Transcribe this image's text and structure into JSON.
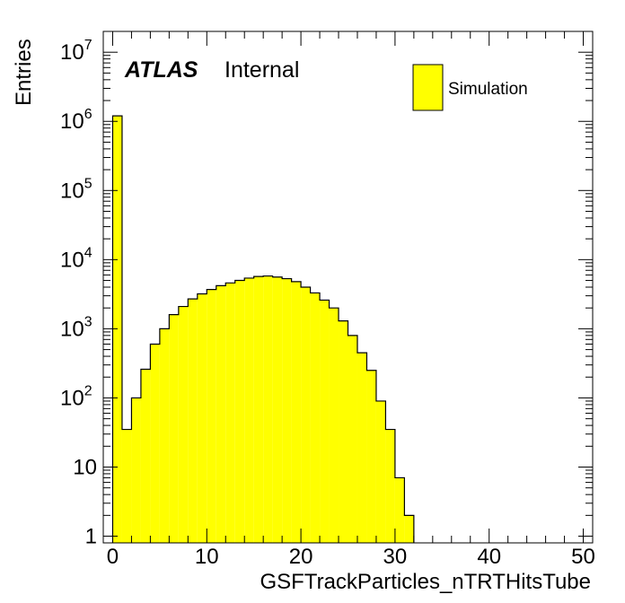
{
  "chart_data": {
    "type": "bar",
    "xlabel": "GSFTrackParticles_nTRTHitsTube",
    "ylabel": "Entries",
    "xlim": [
      -1,
      51
    ],
    "ylim": [
      0.8,
      20000000
    ],
    "yscale": "log",
    "bin_width": 1,
    "x_ticks": [
      0,
      10,
      20,
      30,
      40,
      50
    ],
    "y_ticks": [
      {
        "value": 1,
        "base": "1",
        "exp": ""
      },
      {
        "value": 10,
        "base": "10",
        "exp": ""
      },
      {
        "value": 100,
        "base": "10",
        "exp": "2"
      },
      {
        "value": 1000,
        "base": "10",
        "exp": "3"
      },
      {
        "value": 10000,
        "base": "10",
        "exp": "4"
      },
      {
        "value": 100000,
        "base": "10",
        "exp": "5"
      },
      {
        "value": 1000000,
        "base": "10",
        "exp": "6"
      },
      {
        "value": 10000000,
        "base": "10",
        "exp": "7"
      }
    ],
    "bins_low_edge": [
      -1,
      0,
      1,
      2,
      3,
      4,
      5,
      6,
      7,
      8,
      9,
      10,
      11,
      12,
      13,
      14,
      15,
      16,
      17,
      18,
      19,
      20,
      21,
      22,
      23,
      24,
      25,
      26,
      27,
      28,
      29,
      30,
      31,
      32,
      33,
      34,
      35,
      36,
      37,
      38,
      39,
      40,
      41,
      42,
      43,
      44,
      45,
      46,
      47,
      48,
      49,
      50
    ],
    "values": [
      0,
      1200000,
      35,
      100,
      260,
      600,
      1000,
      1600,
      2100,
      2700,
      3200,
      3700,
      4200,
      4600,
      5000,
      5400,
      5700,
      5800,
      5600,
      5300,
      4800,
      4000,
      3300,
      2600,
      2000,
      1300,
      800,
      450,
      250,
      90,
      35,
      7,
      2,
      0,
      0,
      0,
      0,
      0,
      0,
      0,
      0,
      0,
      0,
      0,
      0,
      0,
      0,
      0,
      0,
      0,
      0,
      0
    ],
    "series": [
      {
        "name": "Simulation",
        "color": "#ffff00"
      }
    ],
    "legend_position": "top-right",
    "annotation": {
      "bold": "ATLAS",
      "text": "Internal"
    },
    "grid": false
  }
}
